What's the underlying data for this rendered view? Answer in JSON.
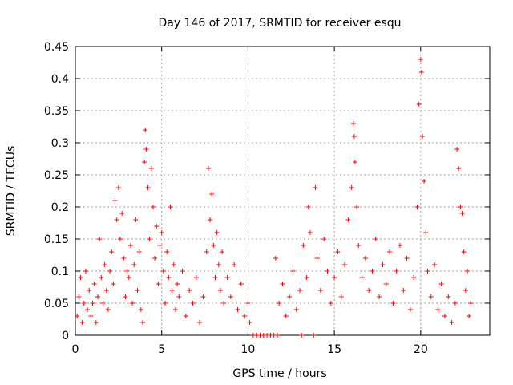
{
  "chart_data": {
    "type": "scatter",
    "title": "Day 146 of 2017, SRMTID for receiver esqu",
    "xlabel": "GPS time / hours",
    "ylabel": "SRMTID / TECUs",
    "xlim": [
      0,
      24
    ],
    "ylim": [
      0,
      0.45
    ],
    "x_ticks": [
      0,
      5,
      10,
      15,
      20
    ],
    "x_tick_labels": [
      "0",
      "5",
      "10",
      "15",
      "20"
    ],
    "y_ticks": [
      0,
      0.05,
      0.1,
      0.15,
      0.2,
      0.25,
      0.3,
      0.35,
      0.4,
      0.45
    ],
    "y_tick_labels": [
      "0",
      "0.05",
      "0.1",
      "0.15",
      "0.2",
      "0.25",
      "0.3",
      "0.35",
      "0.4",
      "0.45"
    ],
    "grid": true,
    "marker": "+",
    "series_color": "#ff0000",
    "series": [
      {
        "name": "SRMTID",
        "points": [
          [
            0.1,
            0.03
          ],
          [
            0.2,
            0.06
          ],
          [
            0.3,
            0.09
          ],
          [
            0.4,
            0.02
          ],
          [
            0.5,
            0.05
          ],
          [
            0.6,
            0.1
          ],
          [
            0.7,
            0.04
          ],
          [
            0.8,
            0.07
          ],
          [
            0.9,
            0.03
          ],
          [
            1.0,
            0.05
          ],
          [
            1.1,
            0.08
          ],
          [
            1.2,
            0.02
          ],
          [
            1.3,
            0.06
          ],
          [
            1.4,
            0.15
          ],
          [
            1.5,
            0.09
          ],
          [
            1.6,
            0.05
          ],
          [
            1.7,
            0.11
          ],
          [
            1.8,
            0.07
          ],
          [
            1.9,
            0.04
          ],
          [
            2.0,
            0.1
          ],
          [
            2.1,
            0.13
          ],
          [
            2.2,
            0.08
          ],
          [
            2.3,
            0.21
          ],
          [
            2.4,
            0.18
          ],
          [
            2.5,
            0.23
          ],
          [
            2.6,
            0.15
          ],
          [
            2.7,
            0.19
          ],
          [
            2.8,
            0.12
          ],
          [
            2.9,
            0.06
          ],
          [
            3.0,
            0.1
          ],
          [
            3.1,
            0.09
          ],
          [
            3.2,
            0.14
          ],
          [
            3.3,
            0.05
          ],
          [
            3.4,
            0.11
          ],
          [
            3.5,
            0.18
          ],
          [
            3.6,
            0.07
          ],
          [
            3.7,
            0.13
          ],
          [
            3.8,
            0.04
          ],
          [
            3.9,
            0.02
          ],
          [
            4.0,
            0.27
          ],
          [
            4.05,
            0.32
          ],
          [
            4.1,
            0.29
          ],
          [
            4.2,
            0.23
          ],
          [
            4.3,
            0.15
          ],
          [
            4.4,
            0.26
          ],
          [
            4.5,
            0.2
          ],
          [
            4.6,
            0.12
          ],
          [
            4.7,
            0.17
          ],
          [
            4.8,
            0.08
          ],
          [
            4.9,
            0.14
          ],
          [
            5.0,
            0.16
          ],
          [
            5.1,
            0.1
          ],
          [
            5.2,
            0.05
          ],
          [
            5.3,
            0.13
          ],
          [
            5.4,
            0.09
          ],
          [
            5.5,
            0.2
          ],
          [
            5.6,
            0.07
          ],
          [
            5.7,
            0.11
          ],
          [
            5.8,
            0.04
          ],
          [
            5.9,
            0.08
          ],
          [
            6.0,
            0.06
          ],
          [
            6.2,
            0.1
          ],
          [
            6.4,
            0.03
          ],
          [
            6.6,
            0.07
          ],
          [
            6.8,
            0.05
          ],
          [
            7.0,
            0.09
          ],
          [
            7.2,
            0.02
          ],
          [
            7.4,
            0.06
          ],
          [
            7.6,
            0.13
          ],
          [
            7.7,
            0.26
          ],
          [
            7.8,
            0.18
          ],
          [
            7.9,
            0.22
          ],
          [
            8.0,
            0.14
          ],
          [
            8.1,
            0.09
          ],
          [
            8.2,
            0.16
          ],
          [
            8.3,
            0.11
          ],
          [
            8.4,
            0.07
          ],
          [
            8.5,
            0.13
          ],
          [
            8.6,
            0.05
          ],
          [
            8.8,
            0.09
          ],
          [
            9.0,
            0.06
          ],
          [
            9.2,
            0.11
          ],
          [
            9.4,
            0.04
          ],
          [
            9.6,
            0.08
          ],
          [
            9.8,
            0.03
          ],
          [
            10.0,
            0.05
          ],
          [
            10.1,
            0.02
          ],
          [
            10.3,
            0.0
          ],
          [
            10.5,
            0.0
          ],
          [
            10.7,
            0.0
          ],
          [
            10.9,
            0.0
          ],
          [
            11.1,
            0.0
          ],
          [
            11.3,
            0.0
          ],
          [
            11.5,
            0.0
          ],
          [
            11.7,
            0.0
          ],
          [
            11.6,
            0.12
          ],
          [
            11.8,
            0.05
          ],
          [
            12.0,
            0.08
          ],
          [
            12.2,
            0.03
          ],
          [
            12.4,
            0.06
          ],
          [
            12.6,
            0.1
          ],
          [
            12.8,
            0.04
          ],
          [
            13.0,
            0.07
          ],
          [
            13.1,
            0.0
          ],
          [
            13.2,
            0.14
          ],
          [
            13.4,
            0.09
          ],
          [
            13.5,
            0.2
          ],
          [
            13.6,
            0.16
          ],
          [
            13.8,
            0.0
          ],
          [
            13.9,
            0.23
          ],
          [
            14.0,
            0.12
          ],
          [
            14.2,
            0.07
          ],
          [
            14.4,
            0.15
          ],
          [
            14.6,
            0.1
          ],
          [
            14.8,
            0.05
          ],
          [
            15.0,
            0.09
          ],
          [
            15.2,
            0.13
          ],
          [
            15.4,
            0.06
          ],
          [
            15.6,
            0.11
          ],
          [
            15.8,
            0.18
          ],
          [
            16.0,
            0.23
          ],
          [
            16.1,
            0.33
          ],
          [
            16.15,
            0.31
          ],
          [
            16.2,
            0.27
          ],
          [
            16.3,
            0.2
          ],
          [
            16.4,
            0.14
          ],
          [
            16.6,
            0.09
          ],
          [
            16.8,
            0.12
          ],
          [
            17.0,
            0.07
          ],
          [
            17.2,
            0.1
          ],
          [
            17.4,
            0.15
          ],
          [
            17.6,
            0.06
          ],
          [
            17.8,
            0.11
          ],
          [
            18.0,
            0.08
          ],
          [
            18.2,
            0.13
          ],
          [
            18.4,
            0.05
          ],
          [
            18.6,
            0.1
          ],
          [
            18.8,
            0.14
          ],
          [
            19.0,
            0.07
          ],
          [
            19.2,
            0.12
          ],
          [
            19.4,
            0.04
          ],
          [
            19.6,
            0.09
          ],
          [
            19.8,
            0.2
          ],
          [
            19.9,
            0.36
          ],
          [
            20.0,
            0.43
          ],
          [
            20.05,
            0.41
          ],
          [
            20.1,
            0.31
          ],
          [
            20.2,
            0.24
          ],
          [
            20.3,
            0.16
          ],
          [
            20.4,
            0.1
          ],
          [
            20.6,
            0.06
          ],
          [
            20.8,
            0.11
          ],
          [
            21.0,
            0.04
          ],
          [
            21.2,
            0.08
          ],
          [
            21.4,
            0.03
          ],
          [
            21.6,
            0.06
          ],
          [
            21.8,
            0.02
          ],
          [
            22.0,
            0.05
          ],
          [
            22.1,
            0.29
          ],
          [
            22.2,
            0.26
          ],
          [
            22.3,
            0.2
          ],
          [
            22.4,
            0.19
          ],
          [
            22.5,
            0.13
          ],
          [
            22.6,
            0.07
          ],
          [
            22.7,
            0.1
          ],
          [
            22.8,
            0.03
          ],
          [
            22.9,
            0.05
          ]
        ]
      }
    ]
  }
}
